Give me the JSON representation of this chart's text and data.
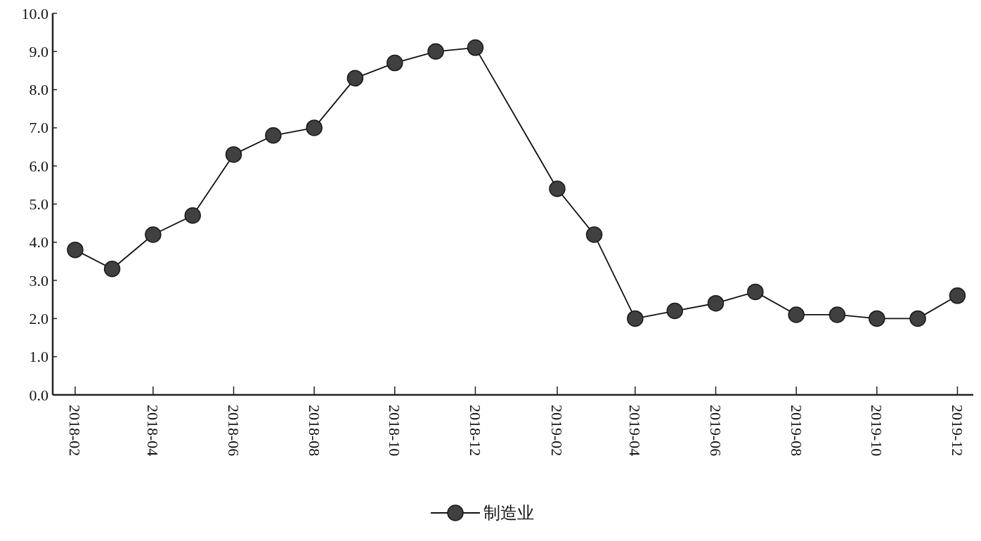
{
  "chart_data": {
    "type": "line",
    "x": [
      "2018-02",
      "2018-03",
      "2018-04",
      "2018-05",
      "2018-06",
      "2018-07",
      "2018-08",
      "2018-09",
      "2018-10",
      "2018-11",
      "2018-12",
      "2019-02",
      "2019-03",
      "2019-04",
      "2019-05",
      "2019-06",
      "2019-07",
      "2019-08",
      "2019-09",
      "2019-10",
      "2019-11",
      "2019-12"
    ],
    "series": [
      {
        "name": "制造业",
        "color": "#404040",
        "values": [
          3.8,
          3.3,
          4.2,
          4.7,
          6.3,
          6.8,
          7.0,
          8.3,
          8.7,
          9.0,
          9.1,
          5.4,
          4.2,
          2.0,
          2.2,
          2.4,
          2.7,
          2.1,
          2.1,
          2.0,
          2.0,
          2.6
        ]
      }
    ],
    "xlim": [
      "2018-01-15",
      "2019-12-13"
    ],
    "xticks": [
      "2018-02",
      "2018-04",
      "2018-06",
      "2018-08",
      "2018-10",
      "2018-12",
      "2019-02",
      "2019-04",
      "2019-06",
      "2019-08",
      "2019-10",
      "2019-12"
    ],
    "ylim": [
      0,
      10
    ],
    "yticks": [
      {
        "value": 0,
        "label": "0.0"
      },
      {
        "value": 1,
        "label": "1.0"
      },
      {
        "value": 2,
        "label": "2.0"
      },
      {
        "value": 3,
        "label": "3.0"
      },
      {
        "value": 4,
        "label": "4.0"
      },
      {
        "value": 5,
        "label": "5.0"
      },
      {
        "value": 6,
        "label": "6.0"
      },
      {
        "value": 7,
        "label": "7.0"
      },
      {
        "value": 8,
        "label": "8.0"
      },
      {
        "value": 9,
        "label": "9.0"
      },
      {
        "value": 10,
        "label": "10.0"
      }
    ],
    "marker": "circle",
    "line_style": "solid",
    "grid": false,
    "legend": "bottom"
  }
}
